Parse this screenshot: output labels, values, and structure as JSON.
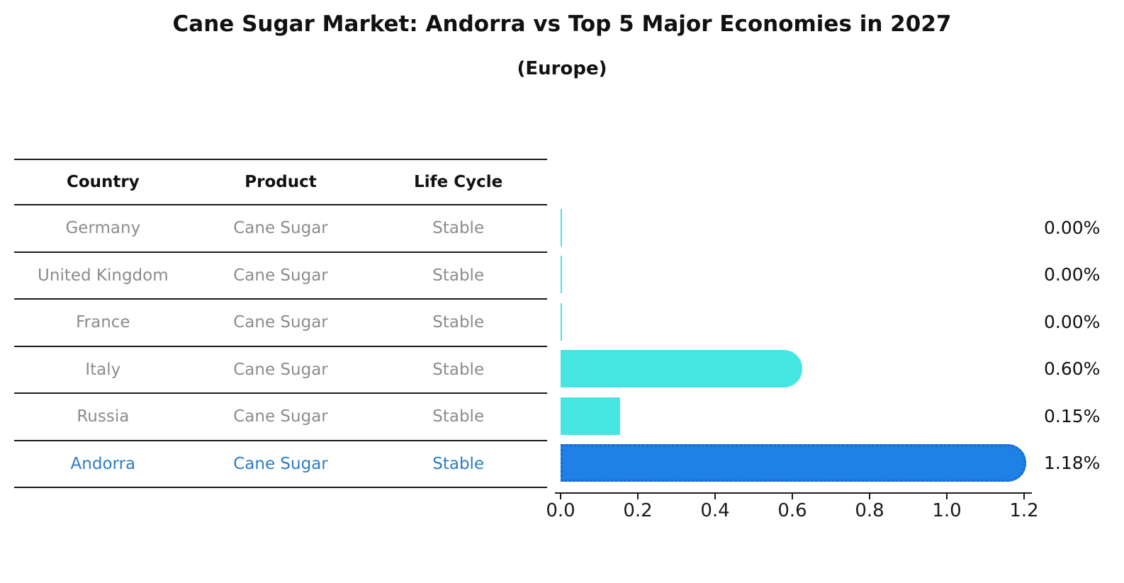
{
  "title": "Cane Sugar Market: Andorra vs Top 5 Major Economies in 2027",
  "subtitle": "(Europe)",
  "table": {
    "headers": [
      "Country",
      "Product",
      "Life Cycle"
    ],
    "rows": [
      {
        "country": "Germany",
        "product": "Cane Sugar",
        "life_cycle": "Stable",
        "highlight": false
      },
      {
        "country": "United Kingdom",
        "product": "Cane Sugar",
        "life_cycle": "Stable",
        "highlight": false
      },
      {
        "country": "France",
        "product": "Cane Sugar",
        "life_cycle": "Stable",
        "highlight": false
      },
      {
        "country": "Italy",
        "product": "Cane Sugar",
        "life_cycle": "Stable",
        "highlight": false
      },
      {
        "country": "Russia",
        "product": "Cane Sugar",
        "life_cycle": "Stable",
        "highlight": false
      },
      {
        "country": "Andorra",
        "product": "Cane Sugar",
        "life_cycle": "Stable",
        "highlight": true
      }
    ]
  },
  "chart_data": {
    "type": "bar",
    "orientation": "horizontal",
    "categories": [
      "Germany",
      "United Kingdom",
      "France",
      "Italy",
      "Russia",
      "Andorra"
    ],
    "values": [
      0.0,
      0.0,
      0.0,
      0.6,
      0.15,
      1.18
    ],
    "value_labels": [
      "0.00%",
      "0.00%",
      "0.00%",
      "0.60%",
      "0.15%",
      "1.18%"
    ],
    "title": "Cane Sugar Market: Andorra vs Top 5 Major Economies in 2027 (Europe)",
    "xlabel": "",
    "ylabel": "",
    "xlim": [
      0.0,
      1.2
    ],
    "xticks": [
      "0.0",
      "0.2",
      "0.4",
      "0.6",
      "0.8",
      "1.0",
      "1.2"
    ],
    "grid": false,
    "legend": false,
    "bar_color": "#45e6e2",
    "highlight_color": "#1f80e6",
    "highlight_index": 5
  },
  "colors": {
    "highlight_text": "#2d7cc8",
    "row_text": "#8c8c8c",
    "header_text": "#111111",
    "line": "#1a1a1a"
  }
}
